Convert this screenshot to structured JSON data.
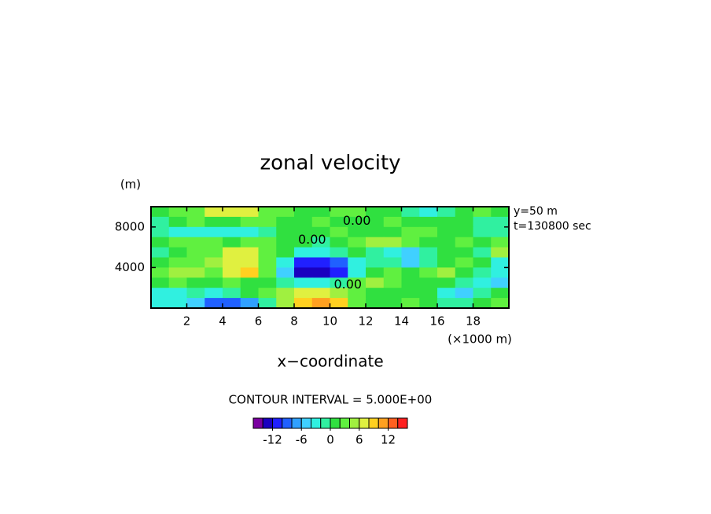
{
  "chart_data": {
    "type": "contour",
    "title": "zonal velocity",
    "xlabel": "x−coordinate",
    "xunit": "(×1000 m)",
    "yunit": "(m)",
    "info": [
      "y=50 m",
      "t=130800 sec"
    ],
    "contour_note": "CONTOUR INTERVAL = 5.000E+00",
    "xlim": [
      0,
      20
    ],
    "xticks": [
      2,
      4,
      6,
      8,
      10,
      12,
      14,
      16,
      18
    ],
    "ylim": [
      0,
      10000
    ],
    "yticks": [
      4000,
      8000
    ],
    "x": [
      0.5,
      1.5,
      2.5,
      3.5,
      4.5,
      5.5,
      6.5,
      7.5,
      8.5,
      9.5,
      10.5,
      11.5,
      12.5,
      13.5,
      14.5,
      15.5,
      16.5,
      17.5,
      18.5,
      19.5
    ],
    "y": [
      9500,
      8500,
      7500,
      6500,
      5500,
      4500,
      3500,
      2500,
      1500,
      500
    ],
    "values": [
      [
        1,
        2,
        3,
        6,
        7,
        6,
        3,
        2,
        1,
        1,
        2,
        2,
        1,
        0,
        -2,
        -3,
        -1,
        1,
        2,
        1
      ],
      [
        -1,
        1,
        2,
        1,
        1,
        2,
        2,
        1,
        1,
        2,
        1,
        0,
        1,
        2,
        1,
        1,
        0,
        0,
        -1,
        -1
      ],
      [
        -2,
        -4,
        -4,
        -3,
        -4,
        -4,
        -2,
        0,
        1,
        1,
        2,
        1,
        1,
        1,
        2,
        2,
        1,
        1,
        -1,
        -2
      ],
      [
        1,
        2,
        2,
        2,
        1,
        2,
        2,
        1,
        0,
        -1,
        1,
        2,
        4,
        5,
        2,
        1,
        1,
        2,
        1,
        2
      ],
      [
        -2,
        1,
        2,
        3,
        6,
        6,
        2,
        0,
        -3,
        -4,
        -2,
        0,
        -1,
        -3,
        -6,
        -2,
        1,
        0,
        -1,
        4
      ],
      [
        1,
        2,
        3,
        5,
        7,
        6,
        2,
        -4,
        -11,
        -12,
        -10,
        -3,
        -1,
        -2,
        -5,
        -2,
        1,
        2,
        1,
        -3
      ],
      [
        3,
        5,
        5,
        2,
        6,
        8,
        3,
        -6,
        -13,
        -14,
        -11,
        -3,
        1,
        2,
        1,
        2,
        4,
        1,
        -1,
        -4
      ],
      [
        1,
        2,
        1,
        1,
        2,
        1,
        0,
        -2,
        -4,
        -4,
        -2,
        2,
        4,
        3,
        1,
        0,
        1,
        -1,
        -3,
        -6
      ],
      [
        -3,
        -3,
        -2,
        -3,
        -1,
        1,
        2,
        5,
        6,
        6,
        4,
        2,
        1,
        0,
        1,
        0,
        -3,
        -6,
        -2,
        1
      ],
      [
        -4,
        -3,
        -6,
        -9,
        -10,
        -8,
        -2,
        4,
        9,
        11,
        9,
        3,
        0,
        1,
        2,
        1,
        -1,
        -2,
        1,
        2
      ]
    ],
    "annotations": [
      {
        "text": "0.00",
        "x": 11.5,
        "y": 8550
      },
      {
        "text": "0.00",
        "x": 9,
        "y": 6700
      },
      {
        "text": "0.00",
        "x": 11,
        "y": 2300
      }
    ],
    "colorbar": {
      "levels": [
        -16,
        -14,
        -12,
        -10,
        -8,
        -6,
        -4,
        -2,
        0,
        2,
        4,
        6,
        8,
        10,
        12,
        14,
        16
      ],
      "colors": [
        "#7a00a0",
        "#1a00c0",
        "#2020ff",
        "#2060ff",
        "#30a0ff",
        "#40d0ff",
        "#30f0e0",
        "#30f0a0",
        "#30e040",
        "#60f040",
        "#a0f040",
        "#e0f040",
        "#ffd020",
        "#ffa020",
        "#ff6020",
        "#ff2020"
      ],
      "ticks": [
        -12,
        -6,
        0,
        6,
        12
      ]
    }
  }
}
